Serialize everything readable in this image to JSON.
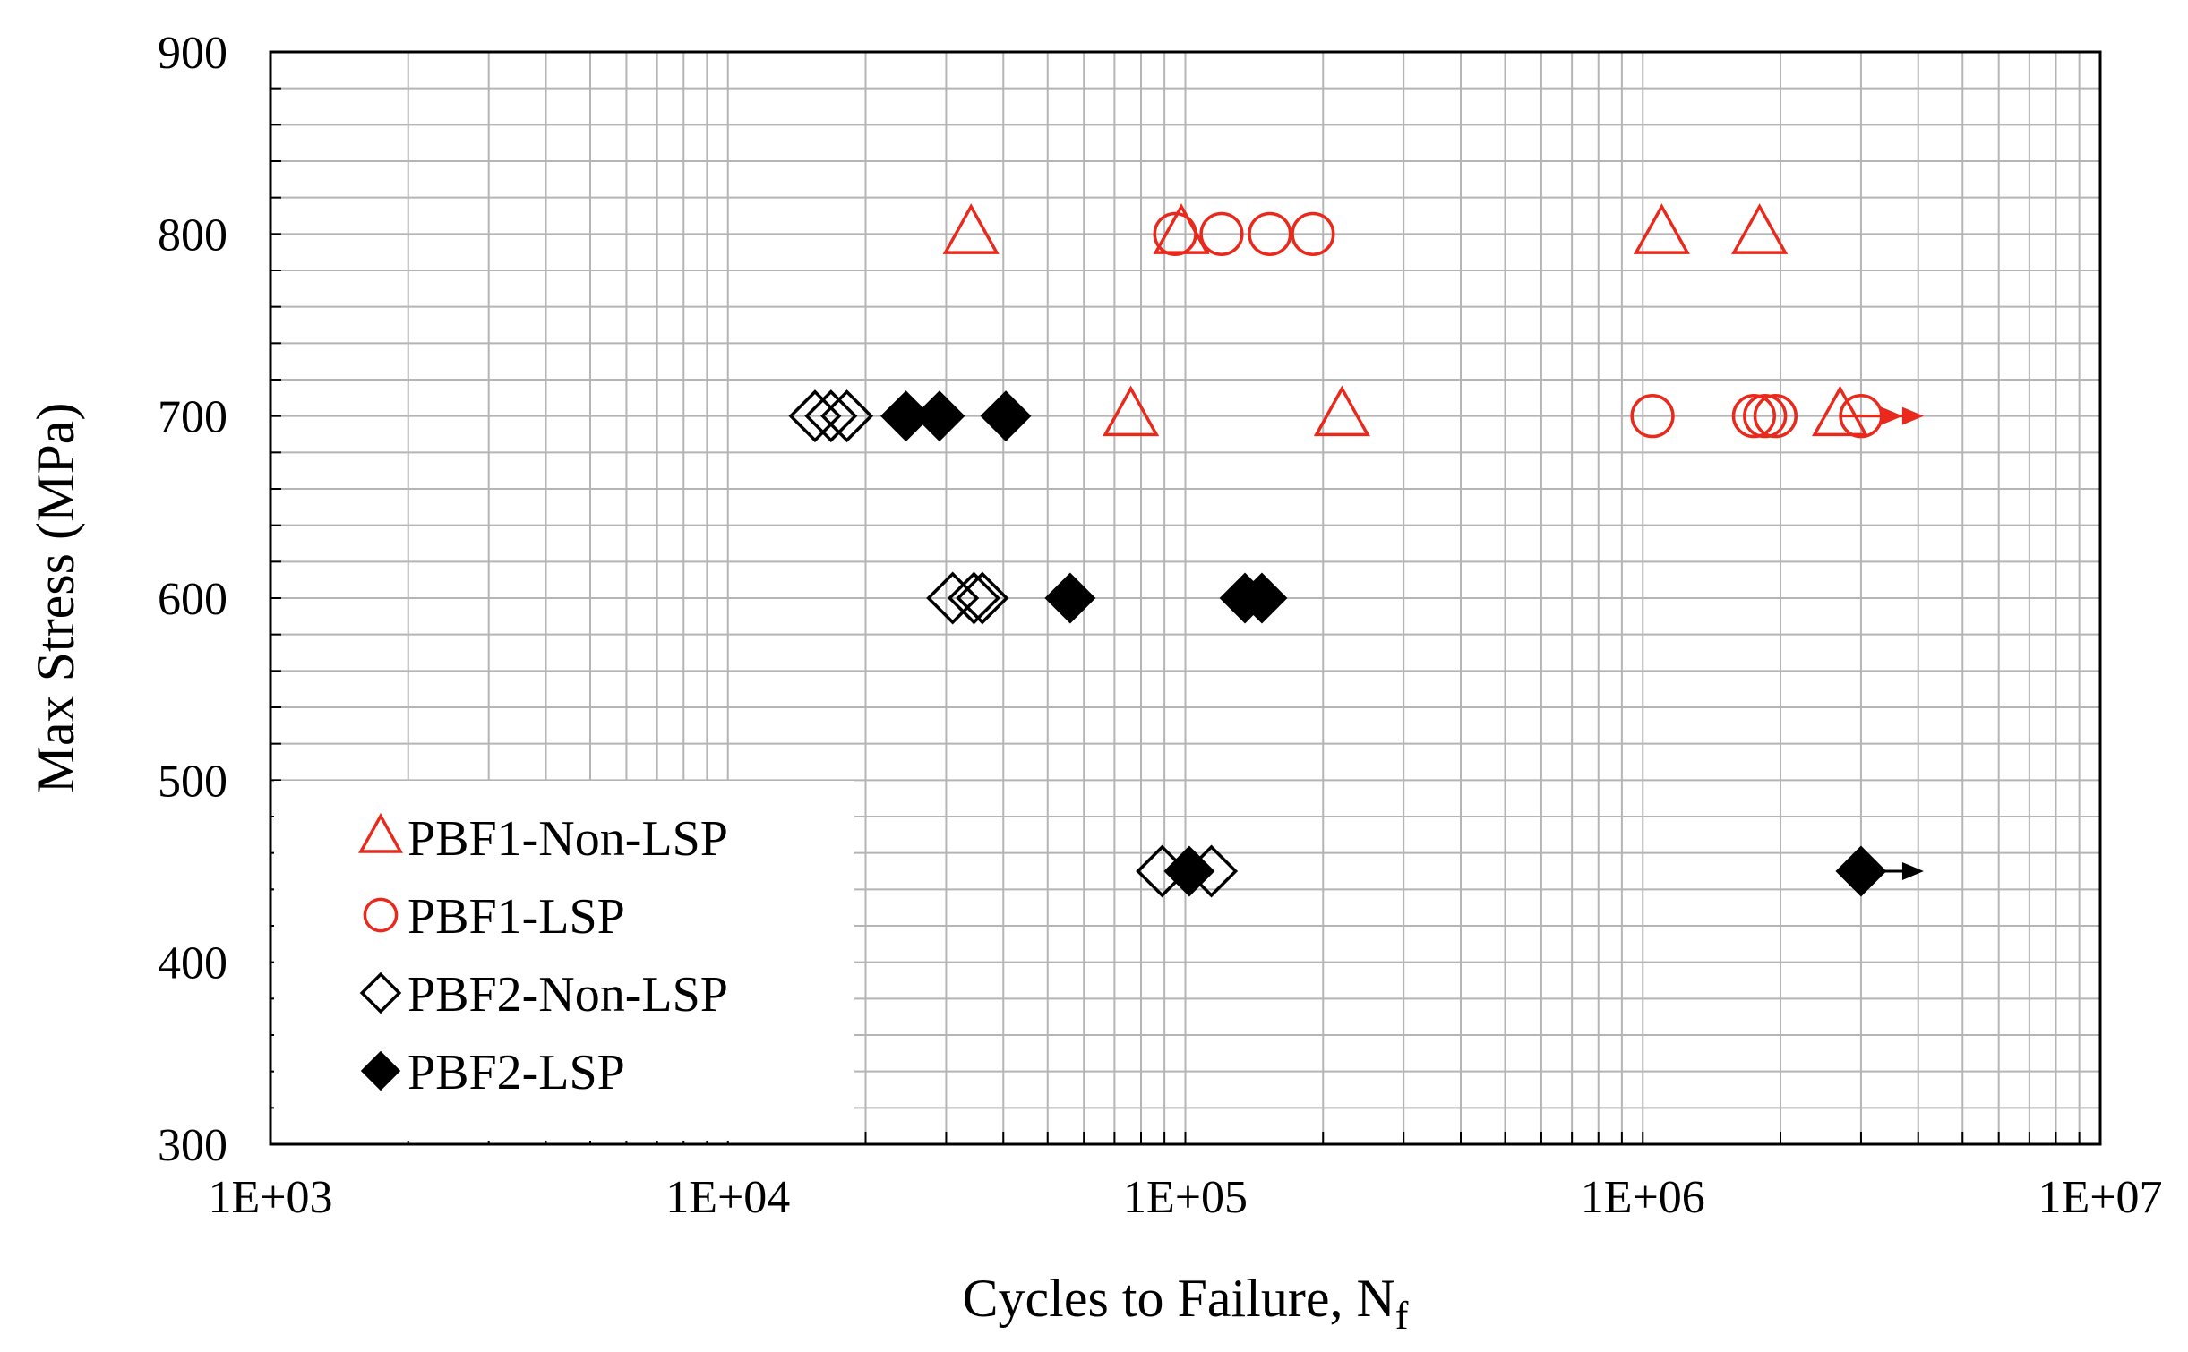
{
  "chart_data": {
    "type": "scatter",
    "title": "",
    "xlabel": "Cycles to Failure, N",
    "xlabel_subscript": "f",
    "ylabel": "Max Stress (MPa)",
    "x_scale": "log",
    "xlim": [
      1000,
      10000000
    ],
    "ylim": [
      300,
      900
    ],
    "x_ticks": [
      {
        "value": 1000,
        "label": "1E+03"
      },
      {
        "value": 10000,
        "label": "1E+04"
      },
      {
        "value": 100000,
        "label": "1E+05"
      },
      {
        "value": 1000000,
        "label": "1E+06"
      },
      {
        "value": 10000000,
        "label": "1E+07"
      }
    ],
    "y_ticks": [
      {
        "value": 300,
        "label": "300"
      },
      {
        "value": 400,
        "label": "400"
      },
      {
        "value": 500,
        "label": "500"
      },
      {
        "value": 600,
        "label": "600"
      },
      {
        "value": 700,
        "label": "700"
      },
      {
        "value": 800,
        "label": "800"
      },
      {
        "value": 900,
        "label": "900"
      }
    ],
    "grid": true,
    "legend_position": "bottom-left",
    "series": [
      {
        "name": "PBF1-Non-LSP",
        "marker": "triangle-open",
        "color": "#e8291c",
        "points": [
          {
            "x": 34000,
            "y": 800
          },
          {
            "x": 98000,
            "y": 800
          },
          {
            "x": 1100000,
            "y": 800
          },
          {
            "x": 1800000,
            "y": 800
          },
          {
            "x": 76000,
            "y": 700
          },
          {
            "x": 220000,
            "y": 700
          },
          {
            "x": 2700000,
            "y": 700,
            "runout": true
          }
        ]
      },
      {
        "name": "PBF1-LSP",
        "marker": "circle-open",
        "color": "#e8291c",
        "points": [
          {
            "x": 95000,
            "y": 800
          },
          {
            "x": 120000,
            "y": 800
          },
          {
            "x": 153000,
            "y": 800
          },
          {
            "x": 190000,
            "y": 800
          },
          {
            "x": 1050000,
            "y": 700
          },
          {
            "x": 1750000,
            "y": 700
          },
          {
            "x": 1850000,
            "y": 700
          },
          {
            "x": 1950000,
            "y": 700
          },
          {
            "x": 3000000,
            "y": 700,
            "runout": true
          }
        ]
      },
      {
        "name": "PBF2-Non-LSP",
        "marker": "diamond-open",
        "color": "#000000",
        "points": [
          {
            "x": 15500,
            "y": 700
          },
          {
            "x": 16800,
            "y": 700
          },
          {
            "x": 18200,
            "y": 700
          },
          {
            "x": 31000,
            "y": 600
          },
          {
            "x": 34500,
            "y": 600
          },
          {
            "x": 36000,
            "y": 600
          },
          {
            "x": 89000,
            "y": 450
          },
          {
            "x": 114000,
            "y": 450
          }
        ]
      },
      {
        "name": "PBF2-LSP",
        "marker": "diamond-filled",
        "color": "#000000",
        "points": [
          {
            "x": 24500,
            "y": 700
          },
          {
            "x": 29000,
            "y": 700
          },
          {
            "x": 40500,
            "y": 700
          },
          {
            "x": 56000,
            "y": 600
          },
          {
            "x": 135000,
            "y": 600
          },
          {
            "x": 147000,
            "y": 600
          },
          {
            "x": 102000,
            "y": 450
          },
          {
            "x": 3000000,
            "y": 450,
            "runout": true
          }
        ]
      }
    ]
  }
}
